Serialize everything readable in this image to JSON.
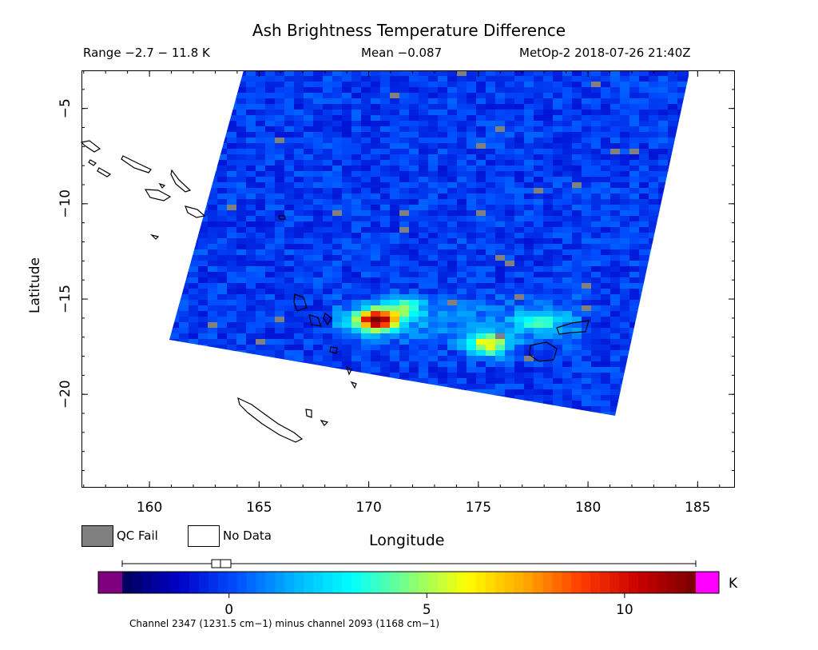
{
  "header": {
    "title": "Ash Brightness Temperature Difference",
    "range": "Range −2.7 − 11.8 K",
    "mean": "Mean −0.087",
    "satellite_time": "MetOp-2 2018-07-26 21:40Z"
  },
  "axes": {
    "xlabel": "Longitude",
    "ylabel": "Latitude",
    "x_ticks": [
      "160",
      "165",
      "170",
      "175",
      "180",
      "185"
    ],
    "x_tick_values": [
      160,
      165,
      170,
      175,
      180,
      185
    ],
    "y_ticks": [
      "−5",
      "−10",
      "−15",
      "−20"
    ],
    "y_tick_values": [
      -5,
      -10,
      -15,
      -20
    ],
    "x_range": [
      156.9,
      186.7
    ],
    "y_range": [
      -24.9,
      -3.0
    ]
  },
  "legend": {
    "qc_fail": "QC Fail",
    "no_data": "No Data",
    "qc_color": "#808080",
    "no_data_color": "#ffffff"
  },
  "colorbar": {
    "units": "K",
    "ticks": [
      "0",
      "5",
      "10"
    ],
    "tick_values": [
      0,
      5,
      10
    ],
    "range": [
      -2.7,
      11.8
    ],
    "under_color": "#7f007f",
    "over_color": "#ff00ff",
    "caption": "Channel 2347 (1231.5 cm−1) minus channel 2093 (1168 cm−1)",
    "stops": [
      "#00005a",
      "#0000c8",
      "#0050ff",
      "#00b4ff",
      "#00ffff",
      "#7fff7f",
      "#ffff00",
      "#ffaa00",
      "#ff3c00",
      "#c80000",
      "#780000"
    ]
  },
  "map": {
    "background_value": -0.2,
    "ash_plumes": [
      {
        "lon": 170.4,
        "lat": -16.1,
        "peak": 11.5
      },
      {
        "lon": 171.6,
        "lat": -15.4,
        "peak": 3.5
      },
      {
        "lon": 175.5,
        "lat": -17.4,
        "peak": 6.5
      },
      {
        "lon": 177.8,
        "lat": -16.2,
        "peak": 3.0
      }
    ]
  }
}
